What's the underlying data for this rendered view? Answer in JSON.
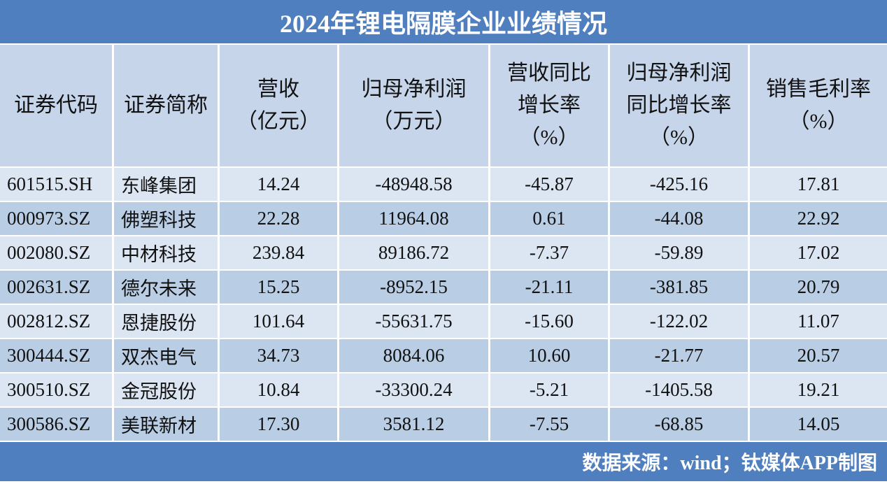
{
  "title": "2024年锂电隔膜企业业绩情况",
  "table": {
    "headers": [
      [
        "证券代码"
      ],
      [
        "证券简称"
      ],
      [
        "营收",
        "（亿元）"
      ],
      [
        "归母净利润",
        "（万元）"
      ],
      [
        "营收同比",
        "增长率",
        "（%）"
      ],
      [
        "归母净利润",
        "同比增长率",
        "（%）"
      ],
      [
        "销售毛利率",
        "（%）"
      ]
    ],
    "rows": [
      [
        "601515.SH",
        "东峰集团",
        "14.24",
        "-48948.58",
        "-45.87",
        "-425.16",
        "17.81"
      ],
      [
        "000973.SZ",
        "佛塑科技",
        "22.28",
        "11964.08",
        "0.61",
        "-44.08",
        "22.92"
      ],
      [
        "002080.SZ",
        "中材科技",
        "239.84",
        "89186.72",
        "-7.37",
        "-59.89",
        "17.02"
      ],
      [
        "002631.SZ",
        "德尔未来",
        "15.25",
        "-8952.15",
        "-21.11",
        "-381.85",
        "20.79"
      ],
      [
        "002812.SZ",
        "恩捷股份",
        "101.64",
        "-55631.75",
        "-15.60",
        "-122.02",
        "11.07"
      ],
      [
        "300444.SZ",
        "双杰电气",
        "34.73",
        "8084.06",
        "10.60",
        "-21.77",
        "20.57"
      ],
      [
        "300510.SZ",
        "金冠股份",
        "10.84",
        "-33300.24",
        "-5.21",
        "-1405.58",
        "19.21"
      ],
      [
        "300586.SZ",
        "美联新材",
        "17.30",
        "3581.12",
        "-7.55",
        "-68.85",
        "14.05"
      ]
    ]
  },
  "footer": "数据来源：wind；钛媒体APP制图"
}
